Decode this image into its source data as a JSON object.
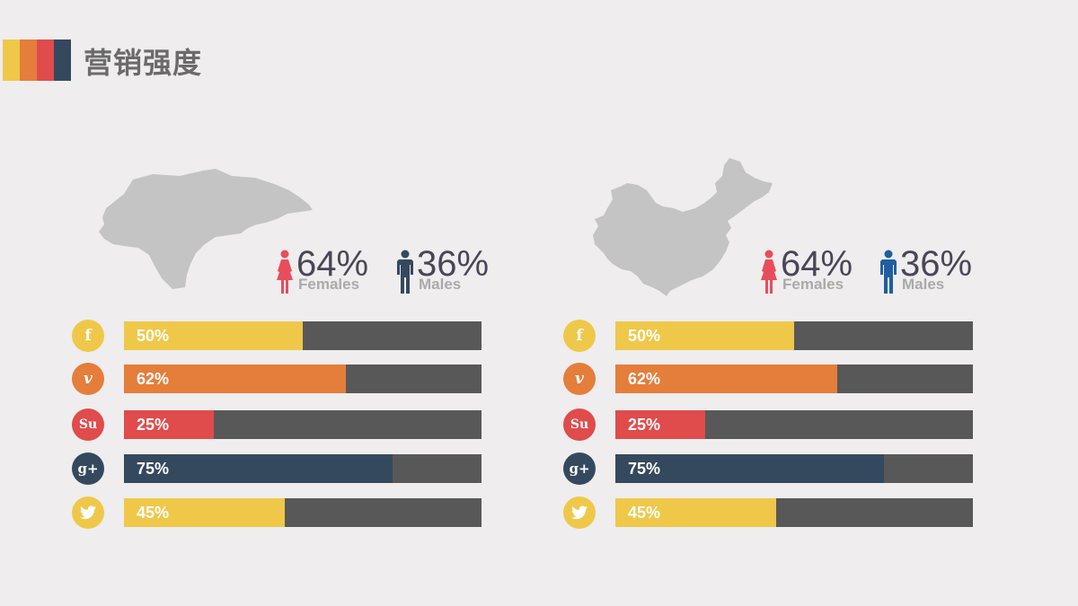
{
  "title": "营销强度",
  "colors": {
    "yellow": "#efc84a",
    "orange": "#e57d3b",
    "red": "#e04b4c",
    "navy": "#34495e",
    "track": "#585858",
    "map": "#c4c4c4",
    "female": "#e84d5c",
    "male_left": "#34495e",
    "male_right": "#1f5fa0"
  },
  "panels": [
    {
      "map": "honduras-map",
      "females": {
        "pct": "64%",
        "label": "Females"
      },
      "males": {
        "pct": "36%",
        "label": "Males"
      }
    },
    {
      "map": "china-map",
      "females": {
        "pct": "64%",
        "label": "Females"
      },
      "males": {
        "pct": "36%",
        "label": "Males"
      }
    }
  ],
  "chart_data": [
    {
      "type": "bar",
      "categories": [
        "facebook",
        "vimeo",
        "stumbleupon",
        "google-plus",
        "twitter"
      ],
      "values": [
        50,
        62,
        25,
        75,
        45
      ],
      "labels": [
        "50%",
        "62%",
        "25%",
        "75%",
        "45%"
      ],
      "colors": [
        "#efc84a",
        "#e57d3b",
        "#e04b4c",
        "#34495e",
        "#efc84a"
      ],
      "icons": [
        "f",
        "v",
        "su",
        "g+",
        "tw"
      ],
      "ylim": [
        0,
        100
      ]
    },
    {
      "type": "bar",
      "categories": [
        "facebook",
        "vimeo",
        "stumbleupon",
        "google-plus",
        "twitter"
      ],
      "values": [
        50,
        62,
        25,
        75,
        45
      ],
      "labels": [
        "50%",
        "62%",
        "25%",
        "75%",
        "45%"
      ],
      "colors": [
        "#efc84a",
        "#e57d3b",
        "#e04b4c",
        "#34495e",
        "#efc84a"
      ],
      "icons": [
        "f",
        "v",
        "su",
        "g+",
        "tw"
      ],
      "ylim": [
        0,
        100
      ]
    }
  ]
}
